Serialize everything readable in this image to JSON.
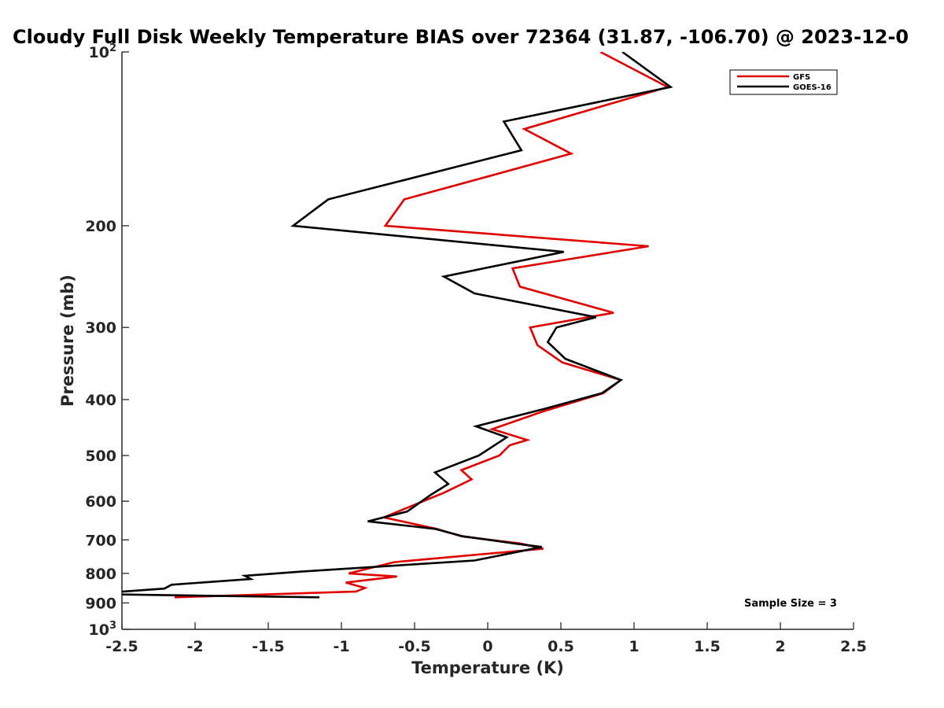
{
  "chart_data": {
    "type": "line",
    "title": "Cloudy Full Disk Weekly Temperature BIAS over 72364 (31.87, -106.70) @ 2023-12-0",
    "xlabel": "Temperature (K)",
    "ylabel": "Pressure (mb)",
    "xlim": [
      -2.5,
      2.5
    ],
    "ylim": [
      100,
      1000
    ],
    "y_scale": "log",
    "y_reversed": true,
    "x_ticks": [
      "-2.5",
      "-2",
      "-1.5",
      "-1",
      "-0.5",
      "0",
      "0.5",
      "1",
      "1.5",
      "2",
      "2.5"
    ],
    "y_ticks": [
      {
        "value": 100,
        "base": "10",
        "exp": "2"
      },
      {
        "value": 200,
        "label": "200"
      },
      {
        "value": 300,
        "label": "300"
      },
      {
        "value": 400,
        "label": "400"
      },
      {
        "value": 500,
        "label": "500"
      },
      {
        "value": 600,
        "label": "600"
      },
      {
        "value": 700,
        "label": "700"
      },
      {
        "value": 800,
        "label": "800"
      },
      {
        "value": 900,
        "label": "900"
      },
      {
        "value": 1000,
        "base": "10",
        "exp": "3"
      }
    ],
    "legend_position": "top-right",
    "annotation": "Sample Size = 3",
    "grid": false,
    "series": [
      {
        "name": "GFS",
        "color": "#e00000",
        "points": [
          [
            0.77,
            100
          ],
          [
            1.23,
            115
          ],
          [
            0.25,
            136
          ],
          [
            0.57,
            150
          ],
          [
            -0.57,
            180
          ],
          [
            -0.7,
            200
          ],
          [
            1.1,
            217
          ],
          [
            0.17,
            237
          ],
          [
            0.22,
            255
          ],
          [
            0.86,
            283
          ],
          [
            0.29,
            300
          ],
          [
            0.34,
            322
          ],
          [
            0.51,
            345
          ],
          [
            0.91,
            370
          ],
          [
            0.79,
            390
          ],
          [
            0.37,
            420
          ],
          [
            0.03,
            450
          ],
          [
            0.27,
            470
          ],
          [
            0.15,
            480
          ],
          [
            0.08,
            500
          ],
          [
            -0.18,
            530
          ],
          [
            -0.11,
            550
          ],
          [
            -0.3,
            580
          ],
          [
            -0.51,
            610
          ],
          [
            -0.71,
            640
          ],
          [
            -0.35,
            670
          ],
          [
            -0.18,
            690
          ],
          [
            0.22,
            710
          ],
          [
            0.38,
            725
          ],
          [
            -0.64,
            765
          ],
          [
            -0.95,
            800
          ],
          [
            -0.62,
            810
          ],
          [
            -0.97,
            830
          ],
          [
            -0.84,
            848
          ],
          [
            -0.9,
            860
          ],
          [
            -2.14,
            880
          ]
        ]
      },
      {
        "name": "GOES-16",
        "color": "#000000",
        "points": [
          [
            0.92,
            100
          ],
          [
            1.25,
            115
          ],
          [
            0.11,
            132
          ],
          [
            0.23,
            148
          ],
          [
            -1.09,
            180
          ],
          [
            -1.33,
            200
          ],
          [
            0.52,
            222
          ],
          [
            -0.3,
            245
          ],
          [
            -0.09,
            262
          ],
          [
            0.74,
            288
          ],
          [
            0.47,
            300
          ],
          [
            0.41,
            318
          ],
          [
            0.53,
            340
          ],
          [
            0.91,
            370
          ],
          [
            0.78,
            390
          ],
          [
            0.39,
            415
          ],
          [
            -0.08,
            445
          ],
          [
            0.13,
            465
          ],
          [
            -0.06,
            500
          ],
          [
            -0.36,
            535
          ],
          [
            -0.27,
            560
          ],
          [
            -0.39,
            585
          ],
          [
            -0.55,
            625
          ],
          [
            -0.82,
            650
          ],
          [
            -0.36,
            670
          ],
          [
            -0.17,
            690
          ],
          [
            0.18,
            710
          ],
          [
            0.37,
            720
          ],
          [
            -0.09,
            760
          ],
          [
            -1.3,
            795
          ],
          [
            -1.66,
            808
          ],
          [
            -1.62,
            818
          ],
          [
            -2.16,
            837
          ],
          [
            -2.21,
            850
          ],
          [
            -2.55,
            862
          ],
          [
            -2.55,
            870
          ],
          [
            -1.15,
            880
          ]
        ]
      }
    ]
  }
}
